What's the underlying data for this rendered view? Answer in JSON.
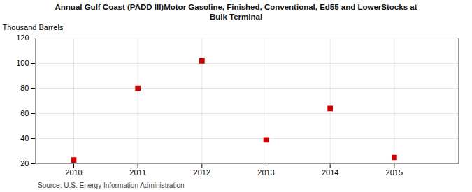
{
  "chart_data": {
    "type": "scatter",
    "title": "Annual Gulf Coast (PADD III)Motor Gasoline, Finished, Conventional, Ed55 and LowerStocks at\nBulk Terminal",
    "ylabel": "Thousand Barrels",
    "annotations": [
      "Source: U.S. Energy Information Administration"
    ],
    "x": [
      2010,
      2011,
      2012,
      2013,
      2014,
      2015
    ],
    "values": [
      23,
      80,
      102,
      39,
      64,
      25
    ],
    "color": "#cc0000",
    "marker": "square",
    "xlim": [
      2009.4,
      2016.0
    ],
    "xticks": [
      2010,
      2011,
      2012,
      2013,
      2014,
      2015
    ],
    "ylim": [
      20,
      120
    ],
    "yticks": [
      20,
      40,
      60,
      80,
      100,
      120
    ],
    "grid": true
  }
}
